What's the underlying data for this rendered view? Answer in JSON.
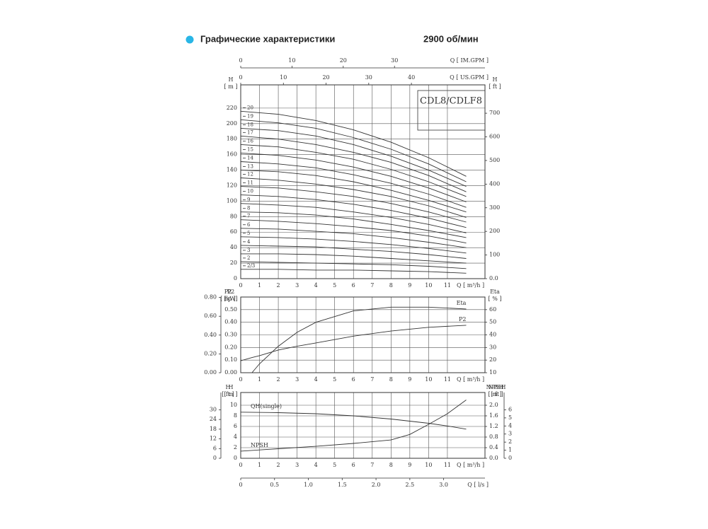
{
  "header": {
    "title": "Графические характеристики",
    "speed": "2900 об/мин"
  },
  "chart_data": [
    {
      "type": "line",
      "title": "CDL8/CDLF8",
      "grid": true,
      "x": [
        0,
        2,
        4,
        6,
        8,
        10,
        12
      ],
      "xlim": [
        0,
        13
      ],
      "xticks": [
        0,
        1,
        2,
        3,
        4,
        5,
        6,
        7,
        8,
        9,
        10,
        11
      ],
      "xlabel": "Q [ m³/h ]",
      "ylim": [
        0,
        250
      ],
      "yticks": [
        0,
        20,
        40,
        60,
        80,
        100,
        120,
        140,
        160,
        180,
        200,
        220
      ],
      "ylabel": [
        "H",
        "[ m ]"
      ],
      "y2lim": [
        0,
        820
      ],
      "y2ticks": [
        {
          "value": 0,
          "label": "0.0"
        },
        100,
        200,
        300,
        400,
        500,
        600,
        700
      ],
      "y2label": [
        "H",
        "[ ft ]"
      ],
      "extra_axes": [
        {
          "label": [
            "Q [ IM.GPM ]"
          ],
          "lim": [
            0,
            47.65
          ],
          "ticks": [
            0,
            10,
            20,
            30
          ]
        },
        {
          "label": [
            "Q [ US.GPM ]"
          ],
          "lim": [
            0,
            57.24
          ],
          "ticks": [
            0,
            10,
            20,
            30,
            40
          ]
        }
      ],
      "series": [
        {
          "name": "20",
          "color": "#333333",
          "values": [
            216,
            212,
            204,
            192,
            176,
            156,
            132
          ]
        },
        {
          "name": "19",
          "color": "#333333",
          "values": [
            205,
            201,
            194,
            182,
            167,
            148,
            125
          ]
        },
        {
          "name": "18",
          "color": "#333333",
          "values": [
            194,
            191,
            184,
            173,
            158,
            140,
            119
          ]
        },
        {
          "name": "17",
          "color": "#333333",
          "values": [
            184,
            180,
            173,
            163,
            150,
            133,
            112
          ]
        },
        {
          "name": "16",
          "color": "#333333",
          "values": [
            173,
            170,
            163,
            154,
            141,
            125,
            106
          ]
        },
        {
          "name": "15",
          "color": "#333333",
          "values": [
            162,
            159,
            153,
            144,
            132,
            117,
            99
          ]
        },
        {
          "name": "14",
          "color": "#333333",
          "values": [
            151,
            148,
            143,
            134,
            123,
            109,
            92
          ]
        },
        {
          "name": "13",
          "color": "#333333",
          "values": [
            140,
            138,
            133,
            125,
            114,
            101,
            86
          ]
        },
        {
          "name": "12",
          "color": "#333333",
          "values": [
            130,
            127,
            122,
            115,
            106,
            94,
            79
          ]
        },
        {
          "name": "11",
          "color": "#333333",
          "values": [
            119,
            117,
            112,
            106,
            97,
            86,
            73
          ]
        },
        {
          "name": "10",
          "color": "#333333",
          "values": [
            108,
            106,
            102,
            96,
            88,
            78,
            66
          ]
        },
        {
          "name": "9",
          "color": "#333333",
          "values": [
            97,
            95,
            92,
            86,
            79,
            70,
            59
          ]
        },
        {
          "name": "8",
          "color": "#333333",
          "values": [
            86,
            85,
            82,
            77,
            70,
            62,
            53
          ]
        },
        {
          "name": "7",
          "color": "#333333",
          "values": [
            76,
            74,
            71,
            67,
            62,
            55,
            46
          ]
        },
        {
          "name": "6",
          "color": "#333333",
          "values": [
            65,
            64,
            61,
            58,
            53,
            47,
            40
          ]
        },
        {
          "name": "5",
          "color": "#333333",
          "values": [
            54,
            53,
            51,
            48,
            44,
            39,
            33
          ]
        },
        {
          "name": "4",
          "color": "#333333",
          "values": [
            43,
            42,
            41,
            38,
            35,
            31,
            26
          ]
        },
        {
          "name": "3",
          "color": "#333333",
          "values": [
            32,
            32,
            31,
            29,
            26,
            23,
            20
          ]
        },
        {
          "name": "2",
          "color": "#333333",
          "values": [
            22,
            21,
            20,
            19,
            18,
            16,
            13
          ]
        },
        {
          "name": "2/3",
          "color": "#333333",
          "values": [
            12,
            12,
            11,
            11,
            10,
            9,
            7
          ]
        }
      ]
    },
    {
      "type": "line",
      "grid": true,
      "x": [
        0,
        0.6,
        1,
        2,
        3,
        4,
        6,
        8,
        10,
        12
      ],
      "xlim": [
        0,
        13
      ],
      "xticks": [
        0,
        1,
        2,
        3,
        4,
        5,
        6,
        7,
        8,
        9,
        10,
        11
      ],
      "xlabel": "Q [ m³/h ]",
      "ylim": [
        0,
        0.6
      ],
      "yticks": [
        {
          "value": 0,
          "label": "0.00"
        },
        {
          "value": 0.1,
          "label": "0.10"
        },
        {
          "value": 0.2,
          "label": "0.20"
        },
        {
          "value": 0.3,
          "label": "0.30"
        },
        {
          "value": 0.4,
          "label": "0.40"
        },
        {
          "value": 0.5,
          "label": "0.50"
        }
      ],
      "ylabel": [
        "P2",
        "[kW]"
      ],
      "y2lim": [
        10,
        70
      ],
      "y2ticks": [
        10,
        20,
        30,
        40,
        50,
        60
      ],
      "y2label": [
        "Eta",
        "[ % ]"
      ],
      "extra_axes": [
        {
          "label": [
            "P2",
            "[ hp ]"
          ],
          "lim": [
            0,
            0.8046
          ],
          "ticks": [
            {
              "value": 0,
              "label": "0.00"
            },
            {
              "value": 0.2,
              "label": "0.20"
            },
            {
              "value": 0.4,
              "label": "0.40"
            },
            {
              "value": 0.6,
              "label": "0.60"
            },
            {
              "value": 0.8,
              "label": "0.80"
            }
          ]
        }
      ],
      "series": [
        {
          "name": "Eta",
          "color": "#333333",
          "axis": "y2",
          "values": [
            null,
            10,
            17,
            31,
            42,
            50,
            59,
            62,
            62,
            60.5
          ]
        },
        {
          "name": "P2",
          "color": "#333333",
          "values": [
            0.095,
            0.12,
            0.135,
            0.18,
            0.21,
            0.236,
            0.29,
            0.33,
            0.36,
            0.376
          ]
        }
      ]
    },
    {
      "type": "line",
      "grid": true,
      "x": [
        0,
        2,
        4,
        6,
        8,
        9,
        10,
        11,
        12
      ],
      "xlim": [
        0,
        13
      ],
      "xticks": [
        0,
        1,
        2,
        3,
        4,
        5,
        6,
        7,
        8,
        9,
        10,
        11
      ],
      "xlabel": "Q [ m³/h ]",
      "ylim": [
        0,
        12.4
      ],
      "yticks": [
        0,
        2,
        4,
        6,
        8,
        10
      ],
      "ylabel": [
        "H",
        "[ m ]"
      ],
      "y2lim": [
        0,
        2.48
      ],
      "y2ticks": [
        {
          "value": 0,
          "label": "0.0"
        },
        0.4,
        0.8,
        1.2,
        1.6,
        {
          "value": 2,
          "label": "2.0"
        }
      ],
      "y2label": [
        "NPSH",
        "[ m ]"
      ],
      "extra_axes": [
        {
          "label": [
            "H",
            "[ ft ]"
          ],
          "lim": [
            0,
            40.68
          ],
          "ticks": [
            0,
            6,
            12,
            18,
            24,
            30
          ]
        },
        {
          "label": [
            "NPSH",
            "[ ft ]"
          ],
          "lim": [
            0,
            8.14
          ],
          "ticks": [
            0,
            1,
            2,
            3,
            4,
            5,
            6
          ]
        },
        {
          "label": [
            "Q [ l/s ]"
          ],
          "lim": [
            0,
            3.611
          ],
          "ticks": [
            0,
            0.5,
            {
              "value": 1,
              "label": "1.0"
            },
            1.5,
            {
              "value": 2,
              "label": "2.0"
            },
            2.5,
            {
              "value": 3,
              "label": "3.0"
            }
          ]
        }
      ],
      "series": [
        {
          "name": "QH(single)",
          "color": "#333333",
          "values": [
            8.7,
            8.6,
            8.4,
            8.0,
            7.4,
            7.0,
            6.6,
            6.1,
            5.5
          ]
        },
        {
          "name": "NPSH",
          "color": "#333333",
          "axis": "y2",
          "values": [
            0.27,
            0.36,
            0.45,
            0.56,
            0.69,
            0.9,
            1.28,
            1.68,
            2.2
          ]
        }
      ]
    }
  ]
}
